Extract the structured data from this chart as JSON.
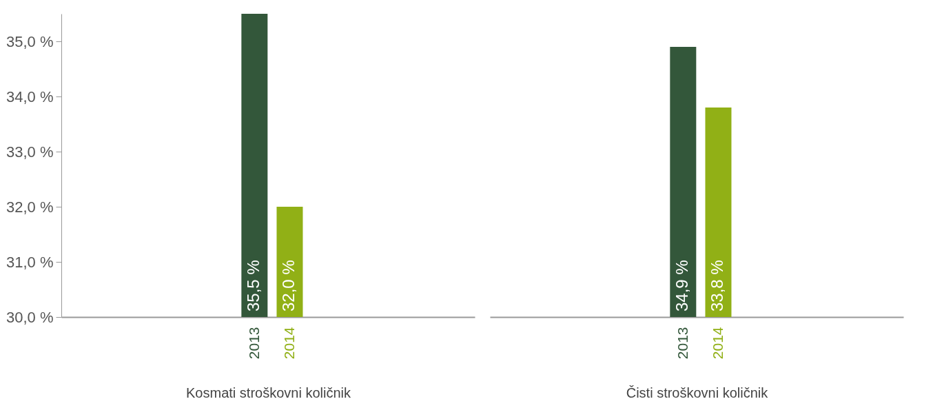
{
  "chart_data": [
    {
      "type": "bar",
      "xlabel": "Kosmati stroškovni količnik",
      "categories": [
        "2013",
        "2014"
      ],
      "values": [
        35.5,
        32.0
      ],
      "colors": [
        "#33573a",
        "#91b016"
      ],
      "value_labels": [
        "35,5 %",
        "32,0 %"
      ],
      "ylim": [
        30,
        35.5
      ],
      "yticks": [
        {
          "value": 30,
          "label": "30,0 %"
        },
        {
          "value": 31,
          "label": "31,0 %"
        },
        {
          "value": 32,
          "label": "32,0 %"
        },
        {
          "value": 33,
          "label": "33,0 %"
        },
        {
          "value": 34,
          "label": "34,0 %"
        },
        {
          "value": 35,
          "label": "35,0 %"
        }
      ]
    },
    {
      "type": "bar",
      "xlabel": "Čisti stroškovni količnik",
      "categories": [
        "2013",
        "2014"
      ],
      "values": [
        34.9,
        33.8
      ],
      "colors": [
        "#33573a",
        "#91b016"
      ],
      "value_labels": [
        "34,9 %",
        "33,8 %"
      ],
      "tick_labels": "x"
    }
  ]
}
